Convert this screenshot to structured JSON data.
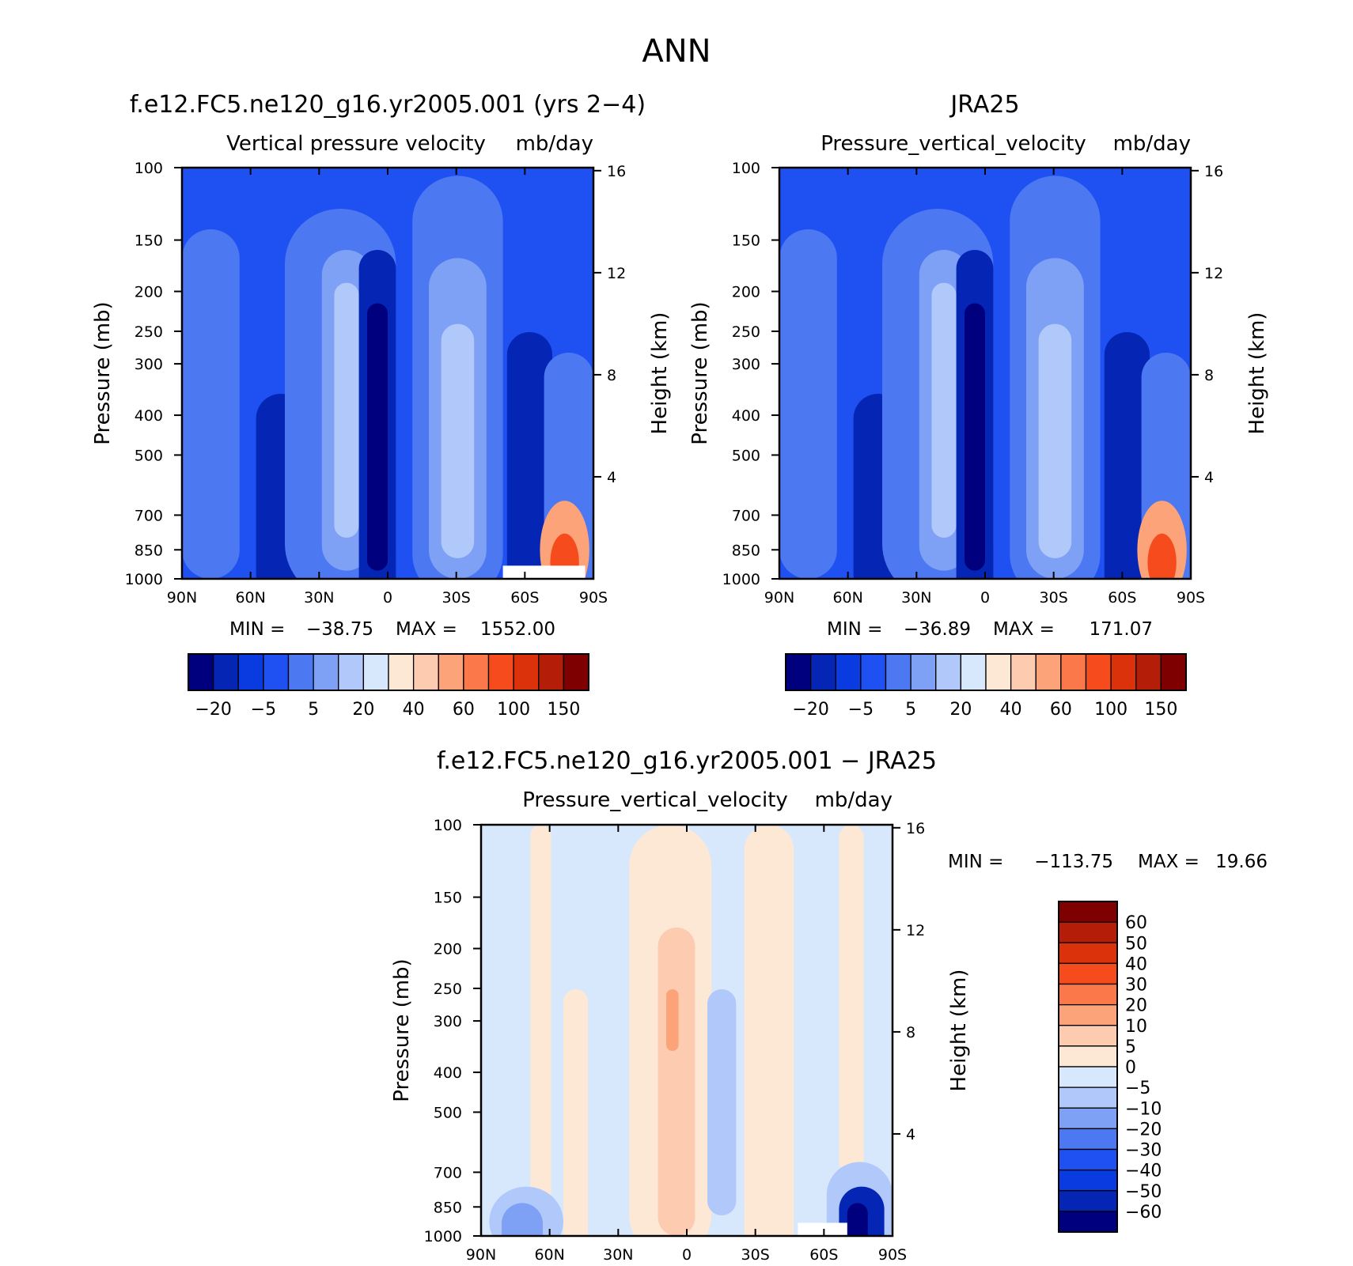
{
  "page_title": "ANN",
  "chart_data": [
    {
      "type": "heatmap",
      "id": "model",
      "title": "f.e12.FC5.ne120_g16.yr2005.001 (yrs 2−4)",
      "variable": "Vertical pressure velocity",
      "units": "mb/day",
      "ylabel": "Pressure (mb)",
      "ylabel_right": "Height (km)",
      "x_ticks": [
        "90N",
        "60N",
        "30N",
        "0",
        "30S",
        "60S",
        "90S"
      ],
      "y_ticks": [
        100,
        150,
        200,
        250,
        300,
        400,
        500,
        700,
        850,
        1000
      ],
      "y_ticks_right": [
        16,
        12,
        8,
        4
      ],
      "ylim": [
        1000,
        100
      ],
      "log_y": true,
      "min_label": "MIN =",
      "min_value": "−38.75",
      "max_label": "MAX =",
      "max_value": "1552.00",
      "colorbar_levels": [
        "−20",
        "−5",
        "5",
        "20",
        "40",
        "60",
        "100",
        "150"
      ],
      "colorbar_colors": [
        "#00007f",
        "#0525b4",
        "#0a3be0",
        "#1f51f2",
        "#4c79f2",
        "#7ea0f5",
        "#b0c8fa",
        "#d7e8fc",
        "#fde8d6",
        "#fccbb0",
        "#fca37a",
        "#fb784a",
        "#f64b1d",
        "#dc320c",
        "#b41e08",
        "#7f0000"
      ],
      "field_colors": {
        "bg": "#1f51f2",
        "dark": "#0525b4",
        "darker": "#00007f",
        "mid": "#4c79f2",
        "light": "#7ea0f5",
        "lighter": "#b0c8fa",
        "red": "#f64b1d"
      }
    },
    {
      "type": "heatmap",
      "id": "obs",
      "title": "JRA25",
      "variable": "Pressure_vertical_velocity",
      "units": "mb/day",
      "ylabel": "Pressure (mb)",
      "ylabel_right": "Height (km)",
      "x_ticks": [
        "90N",
        "60N",
        "30N",
        "0",
        "30S",
        "60S",
        "90S"
      ],
      "y_ticks": [
        100,
        150,
        200,
        250,
        300,
        400,
        500,
        700,
        850,
        1000
      ],
      "y_ticks_right": [
        16,
        12,
        8,
        4
      ],
      "ylim": [
        1000,
        100
      ],
      "log_y": true,
      "min_label": "MIN =",
      "min_value": "−36.89",
      "max_label": "MAX =",
      "max_value": "171.07",
      "colorbar_levels": [
        "−20",
        "−5",
        "5",
        "20",
        "40",
        "60",
        "100",
        "150"
      ],
      "colorbar_colors": [
        "#00007f",
        "#0525b4",
        "#0a3be0",
        "#1f51f2",
        "#4c79f2",
        "#7ea0f5",
        "#b0c8fa",
        "#d7e8fc",
        "#fde8d6",
        "#fccbb0",
        "#fca37a",
        "#fb784a",
        "#f64b1d",
        "#dc320c",
        "#b41e08",
        "#7f0000"
      ],
      "field_colors": {
        "bg": "#1f51f2",
        "dark": "#0525b4",
        "darker": "#00007f",
        "mid": "#4c79f2",
        "light": "#7ea0f5",
        "lighter": "#b0c8fa",
        "red": "#f64b1d"
      }
    },
    {
      "type": "heatmap",
      "id": "diff",
      "title": "f.e12.FC5.ne120_g16.yr2005.001 − JRA25",
      "variable": "Pressure_vertical_velocity",
      "units": "mb/day",
      "ylabel": "Pressure (mb)",
      "ylabel_right": "Height (km)",
      "x_ticks": [
        "90N",
        "60N",
        "30N",
        "0",
        "30S",
        "60S",
        "90S"
      ],
      "y_ticks": [
        100,
        150,
        200,
        250,
        300,
        400,
        500,
        700,
        850,
        1000
      ],
      "y_ticks_right": [
        16,
        12,
        8,
        4
      ],
      "ylim": [
        1000,
        100
      ],
      "log_y": true,
      "min_label": "MIN =",
      "min_value": "−113.75",
      "max_label": "MAX =",
      "max_value": "19.66",
      "colorbar_levels": [
        "60",
        "50",
        "40",
        "30",
        "20",
        "10",
        "5",
        "0",
        "−5",
        "−10",
        "−20",
        "−30",
        "−40",
        "−50",
        "−60"
      ],
      "colorbar_colors": [
        "#7f0000",
        "#b41e08",
        "#dc320c",
        "#f64b1d",
        "#fb784a",
        "#fca37a",
        "#fccbb0",
        "#fde8d6",
        "#d7e8fc",
        "#b0c8fa",
        "#7ea0f5",
        "#4c79f2",
        "#1f51f2",
        "#0a3be0",
        "#0525b4",
        "#00007f"
      ],
      "field_colors": {
        "bg": "#d7e8fc",
        "warm": "#fde8d6",
        "warm2": "#fccbb0",
        "warm3": "#fca37a",
        "cool": "#b0c8fa",
        "cool2": "#7ea0f5",
        "dark": "#0525b4",
        "darker": "#00007f"
      }
    }
  ]
}
